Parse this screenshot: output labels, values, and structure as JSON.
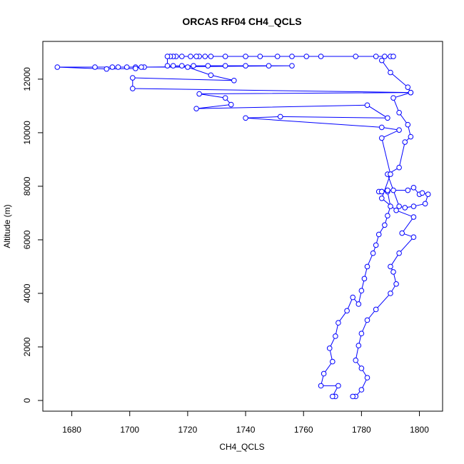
{
  "chart_data": {
    "type": "line",
    "title": "ORCAS RF04 CH4_QCLS",
    "x_label": "CH4_QCLS",
    "y_label": "Altitude (m)",
    "color": "#0000ff",
    "marker": "circle",
    "xlim": [
      1670,
      1808
    ],
    "ylim": [
      -400,
      13410
    ],
    "xticks": [
      1680,
      1700,
      1720,
      1740,
      1760,
      1780,
      1800
    ],
    "yticks": [
      0,
      2000,
      4000,
      6000,
      8000,
      10000,
      12000
    ],
    "x": [
      1771,
      1770,
      1772,
      1766,
      1767,
      1770,
      1769,
      1771,
      1772,
      1775,
      1777,
      1779,
      1780,
      1781,
      1782,
      1784,
      1785,
      1786,
      1788,
      1789,
      1790,
      1789,
      1787,
      1786,
      1787,
      1789,
      1791,
      1796,
      1798,
      1800,
      1801,
      1803,
      1802,
      1798,
      1795,
      1793,
      1789,
      1793,
      1795,
      1797,
      1796,
      1793,
      1791,
      1797,
      1796,
      1790,
      1787,
      1788,
      1790,
      1791,
      1785,
      1778,
      1766,
      1761,
      1756,
      1751,
      1745,
      1740,
      1733,
      1728,
      1726,
      1724,
      1723,
      1721,
      1718,
      1716,
      1715,
      1714,
      1713,
      1713,
      1715,
      1718,
      1722,
      1727,
      1733,
      1740,
      1748,
      1756,
      1705,
      1702,
      1699,
      1696,
      1694,
      1688,
      1675,
      1692,
      1702,
      1704,
      1720,
      1728,
      1736,
      1701,
      1701,
      1797,
      1724,
      1733,
      1735,
      1723,
      1782,
      1789,
      1752,
      1740,
      1787,
      1793,
      1787,
      1790,
      1787,
      1792,
      1798,
      1794,
      1798,
      1793,
      1790,
      1791,
      1792,
      1790,
      1785,
      1782,
      1780,
      1779,
      1778,
      1780,
      1782,
      1780,
      1778,
      1777
    ],
    "values": [
      150,
      150,
      550,
      550,
      1000,
      1450,
      1950,
      2400,
      2900,
      3350,
      3850,
      3600,
      4100,
      4550,
      5000,
      5500,
      5800,
      6200,
      6550,
      6900,
      7250,
      7800,
      7800,
      7800,
      7800,
      7850,
      7850,
      7850,
      7950,
      7700,
      7750,
      7700,
      7350,
      7250,
      7200,
      7250,
      8450,
      8700,
      9650,
      9850,
      10300,
      10750,
      11300,
      11500,
      11700,
      12250,
      12700,
      12850,
      12850,
      12850,
      12850,
      12850,
      12850,
      12850,
      12850,
      12850,
      12850,
      12850,
      12850,
      12850,
      12850,
      12850,
      12850,
      12850,
      12850,
      12850,
      12850,
      12850,
      12850,
      12500,
      12500,
      12500,
      12500,
      12500,
      12500,
      12500,
      12500,
      12500,
      12450,
      12450,
      12450,
      12450,
      12450,
      12450,
      12450,
      12380,
      12400,
      12450,
      12450,
      12150,
      11950,
      12050,
      11650,
      11500,
      11450,
      11300,
      11050,
      10900,
      11030,
      10550,
      10600,
      10550,
      10200,
      10100,
      9800,
      8450,
      7550,
      7100,
      6850,
      6250,
      6100,
      5500,
      5000,
      4800,
      4350,
      4000,
      3400,
      3000,
      2500,
      2050,
      1500,
      1200,
      850,
      400,
      150,
      150
    ]
  }
}
